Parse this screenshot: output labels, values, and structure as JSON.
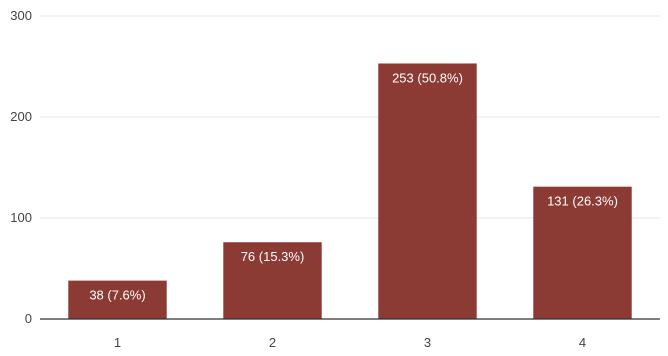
{
  "chart_data": {
    "type": "bar",
    "categories": [
      "1",
      "2",
      "3",
      "4"
    ],
    "values": [
      38,
      76,
      253,
      131
    ],
    "data_labels": [
      "38 (7.6%)",
      "76 (15.3%)",
      "253 (50.8%)",
      "131 (26.3%)"
    ],
    "y_ticks": [
      0,
      100,
      200,
      300
    ],
    "ylim": [
      0,
      300
    ],
    "grid": true,
    "bar_color": "#8b3a34",
    "grid_color": "#e6e6e6"
  }
}
